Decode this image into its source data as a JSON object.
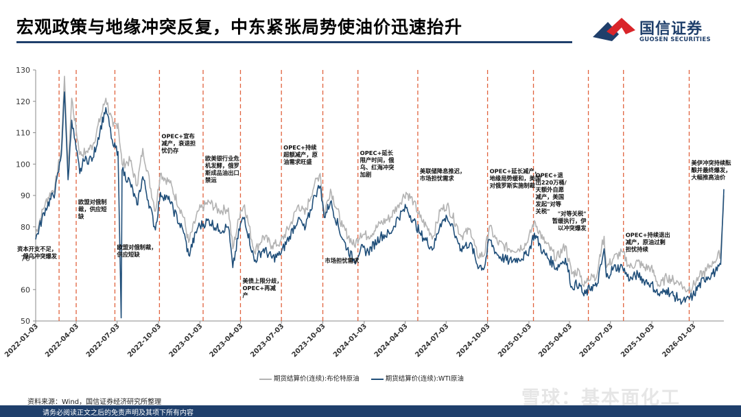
{
  "header": {
    "title": "宏观政策与地缘冲突反复，中东紧张局势使油价迅速抬升",
    "logo_cn": "国信证券",
    "logo_en": "GUOSEN SECURITIES"
  },
  "colors": {
    "brent": "#b3b3b3",
    "wti": "#1f4e79",
    "event_line": "#e0623d",
    "brand": "#1f3f6b",
    "logo_red": "#d9252a"
  },
  "chart_data": {
    "type": "line",
    "ylim": [
      50,
      130
    ],
    "yticks": [
      50,
      60,
      70,
      80,
      90,
      100,
      110,
      120,
      130
    ],
    "xlim": [
      "2022-01-03",
      "2026-03-12"
    ],
    "xticks": [
      "2022-01-03",
      "2022-04-03",
      "2022-07-03",
      "2022-10-03",
      "2023-01-03",
      "2023-04-03",
      "2023-07-03",
      "2023-10-03",
      "2024-01-03",
      "2024-04-03",
      "2024-07-03",
      "2024-10-03",
      "2025-01-03",
      "2025-04-03",
      "2025-07-03",
      "2025-10-03",
      "2026-01-03"
    ],
    "series": [
      {
        "name": "期货结算价(连续):布伦特原油",
        "color_key": "brent",
        "x": [
          "2022-01-03",
          "2022-01-25",
          "2022-02-15",
          "2022-03-01",
          "2022-03-08",
          "2022-03-16",
          "2022-03-24",
          "2022-04-11",
          "2022-04-25",
          "2022-05-10",
          "2022-06-08",
          "2022-06-24",
          "2022-07-05",
          "2022-07-14",
          "2022-08-01",
          "2022-08-16",
          "2022-08-29",
          "2022-09-26",
          "2022-10-07",
          "2022-10-28",
          "2022-11-28",
          "2022-12-09",
          "2022-12-30",
          "2023-01-23",
          "2023-02-15",
          "2023-03-07",
          "2023-03-17",
          "2023-04-03",
          "2023-04-12",
          "2023-05-04",
          "2023-05-24",
          "2023-06-12",
          "2023-06-30",
          "2023-07-21",
          "2023-08-10",
          "2023-08-24",
          "2023-09-15",
          "2023-09-27",
          "2023-10-06",
          "2023-10-20",
          "2023-11-16",
          "2023-12-12",
          "2023-12-26",
          "2024-01-12",
          "2024-02-08",
          "2024-03-01",
          "2024-03-18",
          "2024-04-05",
          "2024-04-22",
          "2024-05-06",
          "2024-06-04",
          "2024-06-20",
          "2024-07-05",
          "2024-07-25",
          "2024-08-05",
          "2024-08-26",
          "2024-09-10",
          "2024-09-26",
          "2024-10-07",
          "2024-10-25",
          "2024-11-20",
          "2024-12-10",
          "2024-12-31",
          "2025-01-15",
          "2025-02-03",
          "2025-03-05",
          "2025-03-25",
          "2025-04-08",
          "2025-04-25",
          "2025-05-05",
          "2025-05-22",
          "2025-06-02",
          "2025-06-13",
          "2025-06-19",
          "2025-06-24",
          "2025-07-10",
          "2025-07-30",
          "2025-08-15",
          "2025-09-02",
          "2025-09-15",
          "2025-10-01",
          "2025-10-20",
          "2025-11-05",
          "2025-11-20",
          "2025-12-05",
          "2025-12-16",
          "2026-01-02",
          "2026-01-15",
          "2026-02-01",
          "2026-02-15",
          "2026-02-25",
          "2026-03-05",
          "2026-03-12"
        ],
        "y": [
          78,
          88,
          93,
          105,
          128,
          98,
          121,
          103,
          104,
          106,
          121,
          112,
          113,
          100,
          101,
          93,
          105,
          85,
          97,
          94,
          83,
          75,
          85,
          88,
          85,
          86,
          73,
          85,
          87,
          72,
          77,
          74,
          75,
          80,
          87,
          84,
          94,
          97,
          84,
          92,
          80,
          74,
          78,
          77,
          81,
          83,
          87,
          91,
          88,
          83,
          77,
          85,
          87,
          81,
          77,
          79,
          71,
          71,
          80,
          75,
          73,
          73,
          75,
          82,
          76,
          70,
          74,
          65,
          66,
          61,
          65,
          64,
          73,
          77,
          67,
          70,
          72,
          67,
          69,
          67,
          67,
          61,
          64,
          63,
          62,
          60,
          61,
          64,
          66,
          69,
          70,
          72,
          90
        ]
      },
      {
        "name": "期货结算价(连续):WTI原油",
        "color_key": "wti",
        "x": [
          "2022-01-03",
          "2022-01-25",
          "2022-02-15",
          "2022-03-01",
          "2022-03-08",
          "2022-03-16",
          "2022-03-24",
          "2022-04-11",
          "2022-04-20",
          "2022-05-10",
          "2022-06-08",
          "2022-06-24",
          "2022-07-05",
          "2022-07-12",
          "2022-07-14",
          "2022-08-01",
          "2022-08-16",
          "2022-08-29",
          "2022-09-26",
          "2022-10-07",
          "2022-10-28",
          "2022-11-28",
          "2022-12-09",
          "2022-12-30",
          "2023-01-23",
          "2023-02-15",
          "2023-03-07",
          "2023-03-17",
          "2023-04-03",
          "2023-04-12",
          "2023-05-04",
          "2023-05-24",
          "2023-06-12",
          "2023-06-30",
          "2023-07-21",
          "2023-08-10",
          "2023-08-24",
          "2023-09-15",
          "2023-09-27",
          "2023-10-06",
          "2023-10-20",
          "2023-11-16",
          "2023-12-12",
          "2023-12-26",
          "2024-01-12",
          "2024-02-08",
          "2024-03-01",
          "2024-03-18",
          "2024-04-05",
          "2024-04-22",
          "2024-05-06",
          "2024-06-04",
          "2024-06-20",
          "2024-07-05",
          "2024-07-25",
          "2024-08-05",
          "2024-08-26",
          "2024-09-10",
          "2024-09-26",
          "2024-10-07",
          "2024-10-25",
          "2024-11-20",
          "2024-12-10",
          "2024-12-31",
          "2025-01-15",
          "2025-02-03",
          "2025-03-05",
          "2025-03-25",
          "2025-04-08",
          "2025-04-25",
          "2025-05-05",
          "2025-05-22",
          "2025-06-02",
          "2025-06-13",
          "2025-06-19",
          "2025-06-24",
          "2025-07-10",
          "2025-07-30",
          "2025-08-15",
          "2025-09-02",
          "2025-09-15",
          "2025-10-01",
          "2025-10-20",
          "2025-11-05",
          "2025-11-20",
          "2025-12-05",
          "2025-12-16",
          "2026-01-02",
          "2026-01-15",
          "2026-02-01",
          "2026-02-15",
          "2026-02-25",
          "2026-03-05",
          "2026-03-12"
        ],
        "y": [
          76,
          86,
          91,
          103,
          123,
          95,
          114,
          97,
          101,
          102,
          118,
          106,
          104,
          51,
          98,
          94,
          87,
          96,
          79,
          91,
          88,
          78,
          71,
          80,
          82,
          79,
          80,
          67,
          81,
          83,
          69,
          73,
          70,
          71,
          77,
          83,
          79,
          90,
          93,
          83,
          88,
          76,
          69,
          73,
          72,
          77,
          78,
          83,
          86,
          82,
          78,
          73,
          81,
          83,
          77,
          73,
          75,
          68,
          67,
          76,
          71,
          69,
          70,
          71,
          78,
          72,
          67,
          70,
          61,
          62,
          58,
          61,
          61,
          68,
          73,
          64,
          67,
          67,
          63,
          65,
          63,
          62,
          58,
          60,
          58,
          57,
          56,
          58,
          61,
          64,
          65,
          66,
          68,
          92
        ]
      }
    ],
    "events": [
      {
        "date": "2022-02-24",
        "label": "资本开支不足，\n俄乌冲突爆发",
        "label_y": 72.3,
        "label_side": "left"
      },
      {
        "date": "2022-04-03",
        "label": "欧盟对俄制\n裁，供应短\n缺",
        "label_y": 87.3,
        "label_side": "right"
      },
      {
        "date": "2022-06-28",
        "label": "欧盟对俄制裁，\n供应短缺",
        "label_y": 72.8,
        "label_side": "right"
      },
      {
        "date": "2022-10-05",
        "label": "OPEC+宣布\n减产，衰退担\n忧仍存",
        "label_y": 108.2,
        "label_side": "right"
      },
      {
        "date": "2023-01-10",
        "label": "欧美银行业危\n机发酵，俄罗\n斯成品油出口\n禁运",
        "label_y": 101.1,
        "label_side": "right"
      },
      {
        "date": "2023-04-03",
        "label": "美债上限分歧，\nOPEC+再减\n产",
        "label_y": 62.1,
        "label_side": "right"
      },
      {
        "date": "2023-07-03",
        "label": "OPEC+持续\n超额减产，原\n油需求旺盛",
        "label_y": 104.6,
        "label_side": "right"
      },
      {
        "date": "2023-10-03",
        "label": "市场担忧需求",
        "label_y": 68.6,
        "label_side": "right"
      },
      {
        "date": "2023-12-20",
        "label": "OPEC+延长\n限产时间，俄\n乌、红海冲突\n加剧",
        "label_y": 102.9,
        "label_side": "right"
      },
      {
        "date": "2024-05-01",
        "label": "美联储降息推迟，\n市场担忧需求",
        "label_y": 97.1,
        "label_side": "right"
      },
      {
        "date": "2024-10-03",
        "label": "OPEC+延长减产，\n地缘局势缓和，美国\n对俄罗斯实施制裁",
        "label_y": 97.1,
        "label_side": "right"
      },
      {
        "date": "2025-01-13",
        "label": "OPEC+退\n出220万桶/\n天额外自愿\n减产，美国\n发起\"对等\n关税\"",
        "label_y": 95.8,
        "label_side": "right"
      },
      {
        "date": "2025-05-15",
        "label": "\"对等关税\"\n暂缓执行，伊\n以冲突爆发",
        "label_y": 83.5,
        "label_side": "left"
      },
      {
        "date": "2025-08-01",
        "label": "OPEC+持续退出\n减产，原油过剩\n担忧持续",
        "label_y": 76.8,
        "label_side": "right"
      },
      {
        "date": "2025-12-25",
        "label": "美伊冲突持续酝\n酿并最终爆发，\n大幅推高油价",
        "label_y": 99.7,
        "label_side": "right"
      }
    ]
  },
  "legend": {
    "brent": "期货结算价(连续):布伦特原油",
    "wti": "期货结算价(连续):WTI原油"
  },
  "source": "资料来源：Wind，国信证券经济研究所整理",
  "watermark": "雪球：基本面化工",
  "footer": "请务必阅读正文之后的免责声明及其项下所有内容"
}
